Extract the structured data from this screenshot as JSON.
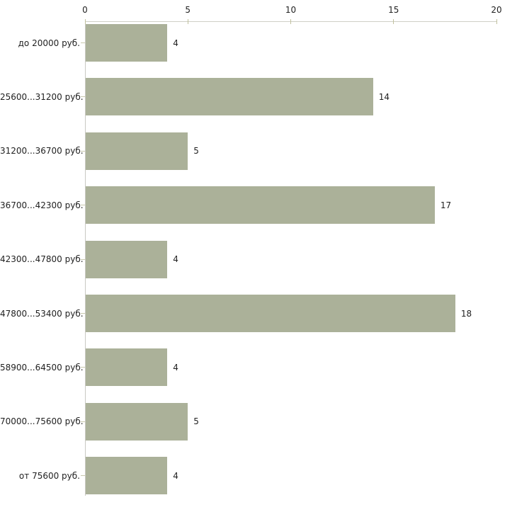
{
  "chart_data": {
    "type": "bar",
    "orientation": "horizontal",
    "categories": [
      "до 20000 руб.",
      "25600...31200 руб.",
      "31200...36700 руб.",
      "36700...42300 руб.",
      "42300...47800 руб.",
      "47800...53400 руб.",
      "58900...64500 руб.",
      "70000...75600 руб.",
      "от 75600 руб."
    ],
    "values": [
      4,
      14,
      5,
      17,
      4,
      18,
      4,
      5,
      4
    ],
    "value_labels": [
      "4",
      "14",
      "5",
      "17",
      "4",
      "18",
      "4",
      "5",
      "4"
    ],
    "x_ticks": [
      0,
      5,
      10,
      15,
      20
    ],
    "x_tick_labels": [
      "0",
      "5",
      "10",
      "15",
      "20"
    ],
    "xlim": [
      0,
      20
    ],
    "xlabel": "",
    "ylabel": "",
    "grid": "off",
    "legend": "none",
    "axis_position": "top",
    "colors": {
      "bar": "#abb199",
      "axis_line": "#cfcfc7",
      "tick_mark": "#c1c19e",
      "text": "#1f1f1f",
      "background": "#ffffff"
    }
  }
}
